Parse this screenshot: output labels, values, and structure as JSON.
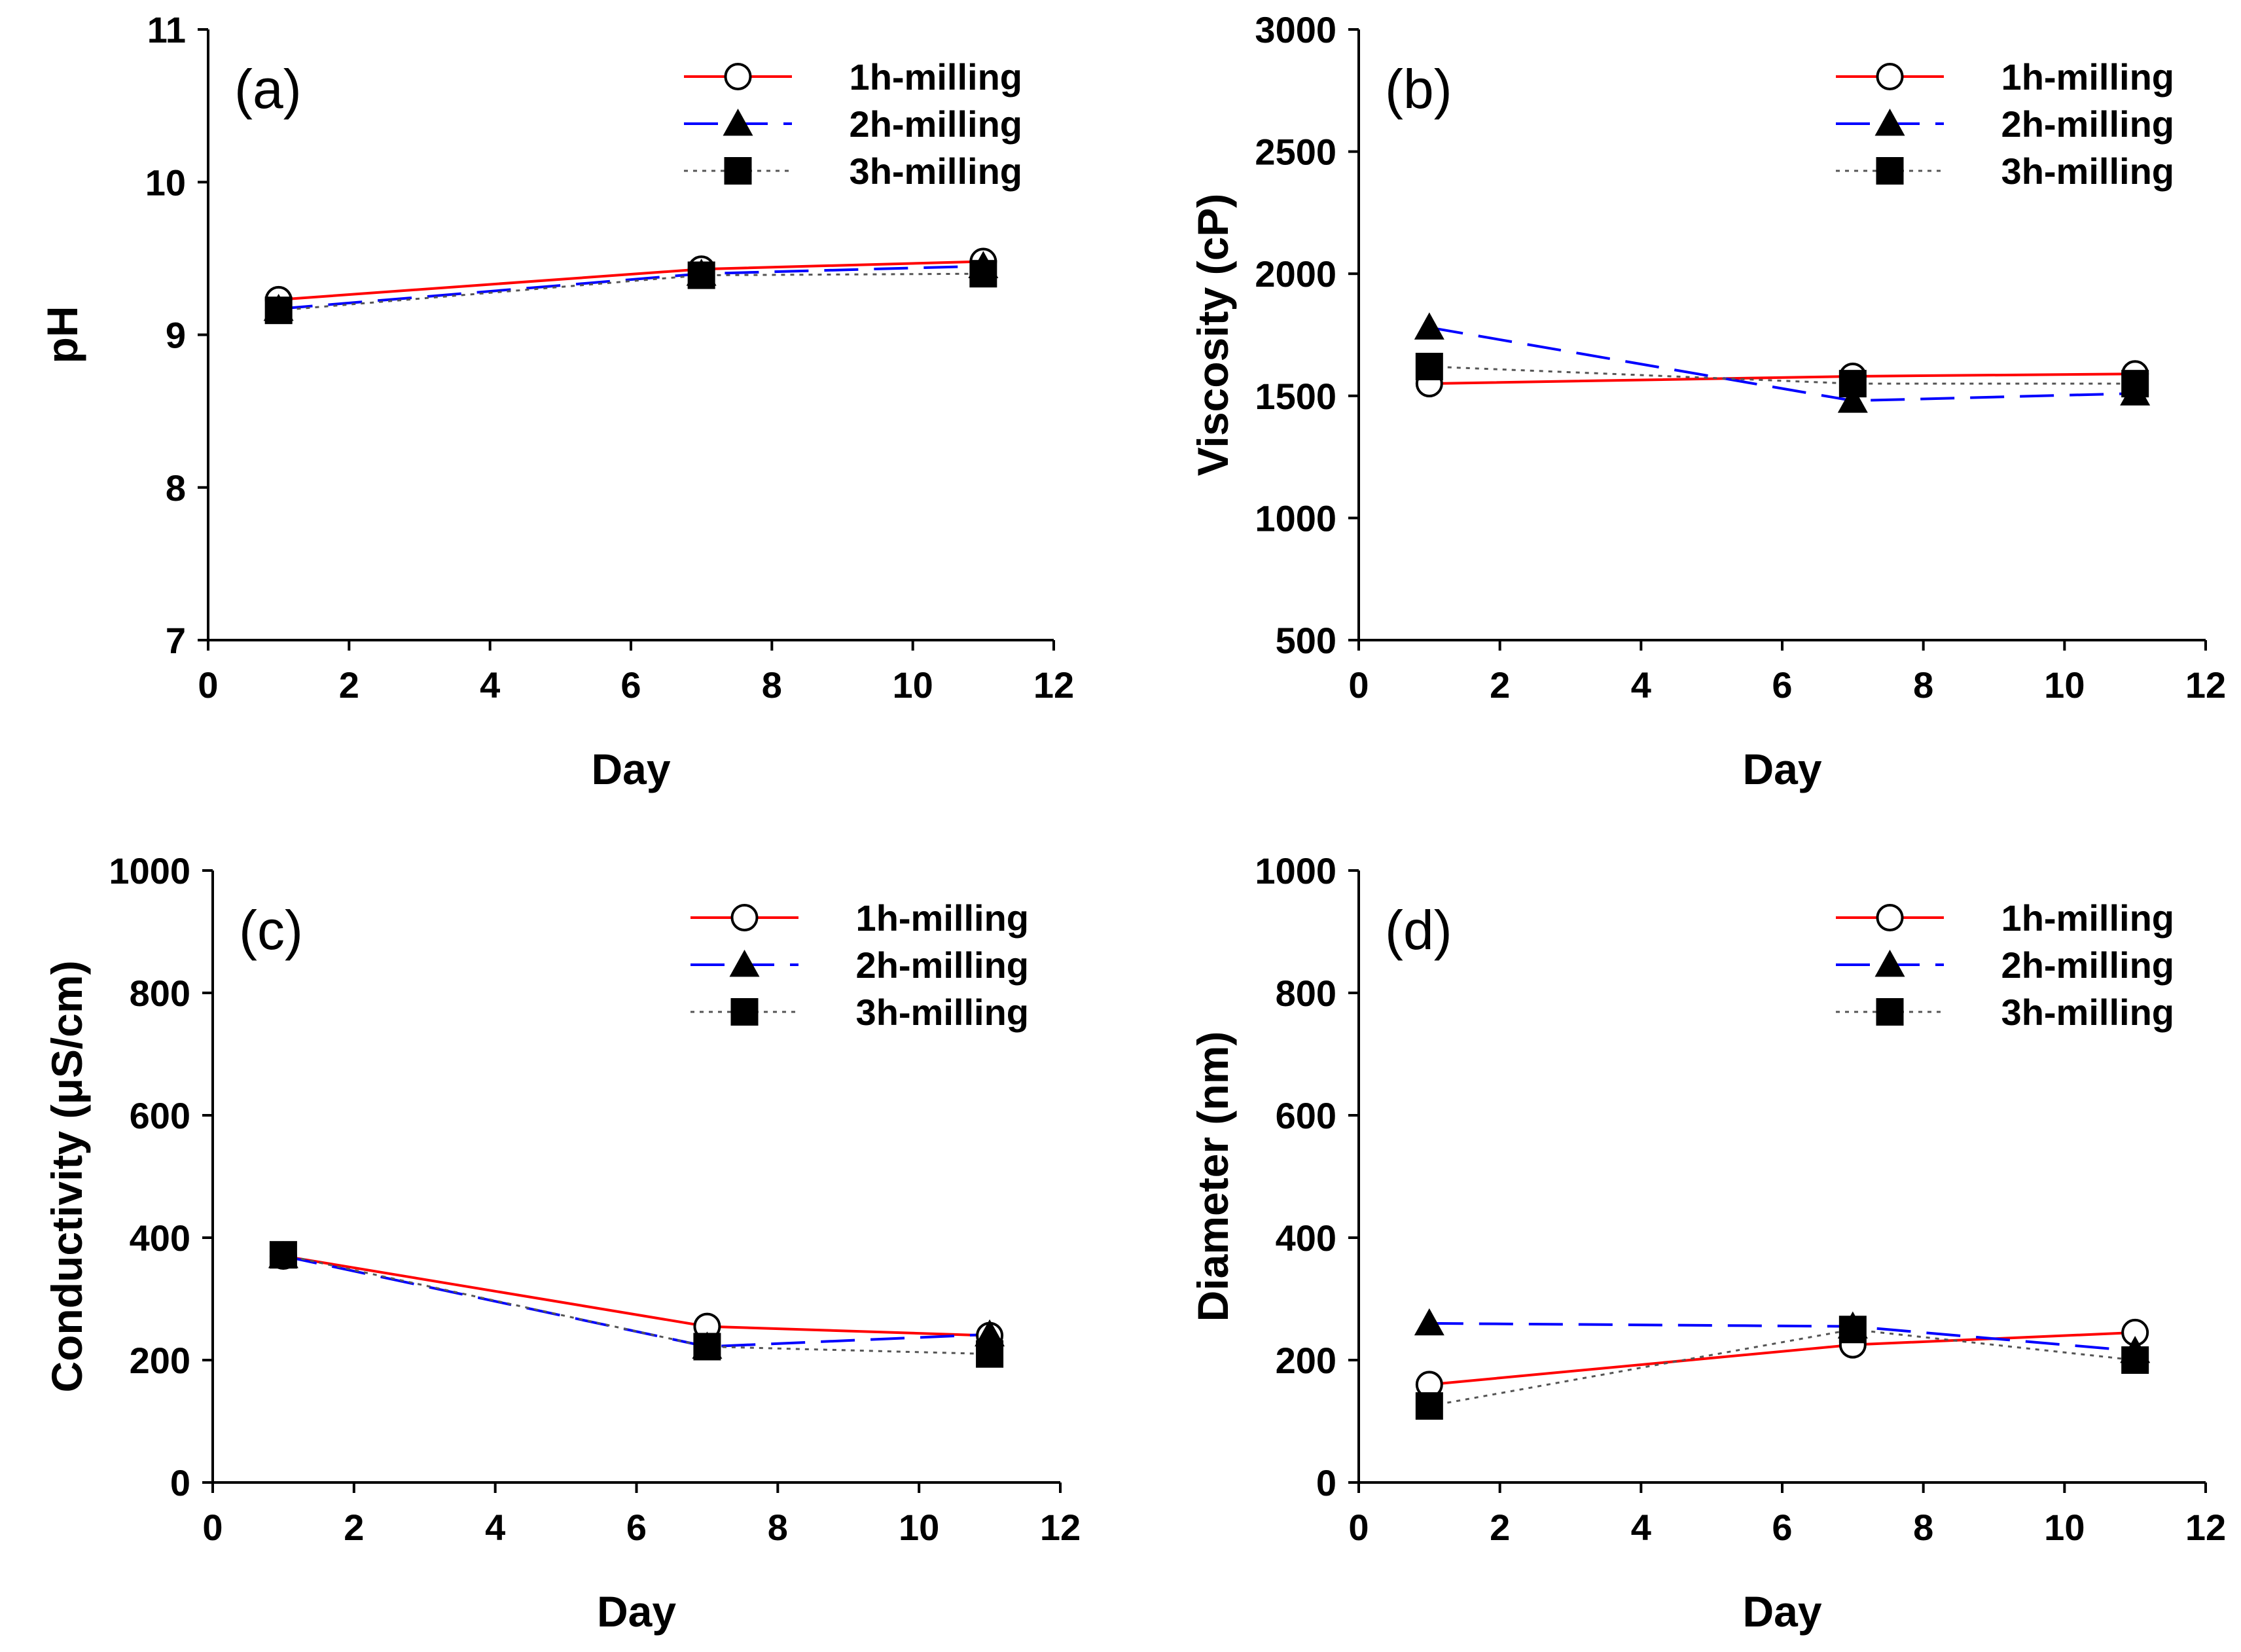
{
  "chart_data": [
    {
      "type": "line",
      "panel": "(a)",
      "xlabel": "Day",
      "ylabel": "pH",
      "xlim": [
        0,
        12
      ],
      "ylim": [
        7,
        11
      ],
      "xticks": [
        "0",
        "2",
        "4",
        "6",
        "8",
        "10",
        "12"
      ],
      "yticks": [
        "7",
        "8",
        "9",
        "10",
        "11"
      ],
      "x": [
        1,
        7,
        11
      ],
      "legend_position": "top-right",
      "series": [
        {
          "name": "1h-milling",
          "values": [
            9.23,
            9.43,
            9.48
          ]
        },
        {
          "name": "2h-milling",
          "values": [
            9.17,
            9.4,
            9.45
          ]
        },
        {
          "name": "3h-milling",
          "values": [
            9.16,
            9.39,
            9.4
          ]
        }
      ]
    },
    {
      "type": "line",
      "panel": "(b)",
      "xlabel": "Day",
      "ylabel": "Viscosity (cP)",
      "xlim": [
        0,
        12
      ],
      "ylim": [
        500,
        3000
      ],
      "xticks": [
        "0",
        "2",
        "4",
        "6",
        "8",
        "10",
        "12"
      ],
      "yticks": [
        "500",
        "1000",
        "1500",
        "2000",
        "2500",
        "3000"
      ],
      "x": [
        1,
        7,
        11
      ],
      "legend_position": "top-right",
      "series": [
        {
          "name": "1h-milling",
          "values": [
            1550,
            1580,
            1590
          ]
        },
        {
          "name": "2h-milling",
          "values": [
            1780,
            1480,
            1510
          ]
        },
        {
          "name": "3h-milling",
          "values": [
            1620,
            1550,
            1550
          ]
        }
      ]
    },
    {
      "type": "line",
      "panel": "(c)",
      "xlabel": "Day",
      "ylabel": "Conductivity (μS/cm)",
      "xlim": [
        0,
        12
      ],
      "ylim": [
        0,
        1000
      ],
      "xticks": [
        "0",
        "2",
        "4",
        "6",
        "8",
        "10",
        "12"
      ],
      "yticks": [
        "0",
        "200",
        "400",
        "600",
        "800",
        "1000"
      ],
      "x": [
        1,
        7,
        11
      ],
      "legend_position": "top-right",
      "series": [
        {
          "name": "1h-milling",
          "values": [
            370,
            255,
            240
          ]
        },
        {
          "name": "2h-milling",
          "values": [
            370,
            222,
            242
          ]
        },
        {
          "name": "3h-milling",
          "values": [
            372,
            222,
            210
          ]
        }
      ]
    },
    {
      "type": "line",
      "panel": "(d)",
      "xlabel": "Day",
      "ylabel": "Diameter (nm)",
      "xlim": [
        0,
        12
      ],
      "ylim": [
        0,
        1000
      ],
      "xticks": [
        "0",
        "2",
        "4",
        "6",
        "8",
        "10",
        "12"
      ],
      "yticks": [
        "0",
        "200",
        "400",
        "600",
        "800",
        "1000"
      ],
      "x": [
        1,
        7,
        11
      ],
      "legend_position": "top-right",
      "series": [
        {
          "name": "1h-milling",
          "values": [
            160,
            225,
            245
          ]
        },
        {
          "name": "2h-milling",
          "values": [
            260,
            255,
            215
          ]
        },
        {
          "name": "3h-milling",
          "values": [
            125,
            250,
            200
          ]
        }
      ]
    }
  ],
  "style": {
    "series_colors": [
      "#ff0000",
      "#0000ff",
      "#555555"
    ],
    "series_markers": [
      "open-circle",
      "filled-triangle",
      "filled-square"
    ],
    "series_dash": [
      "solid",
      "long-dash",
      "dotted"
    ]
  }
}
